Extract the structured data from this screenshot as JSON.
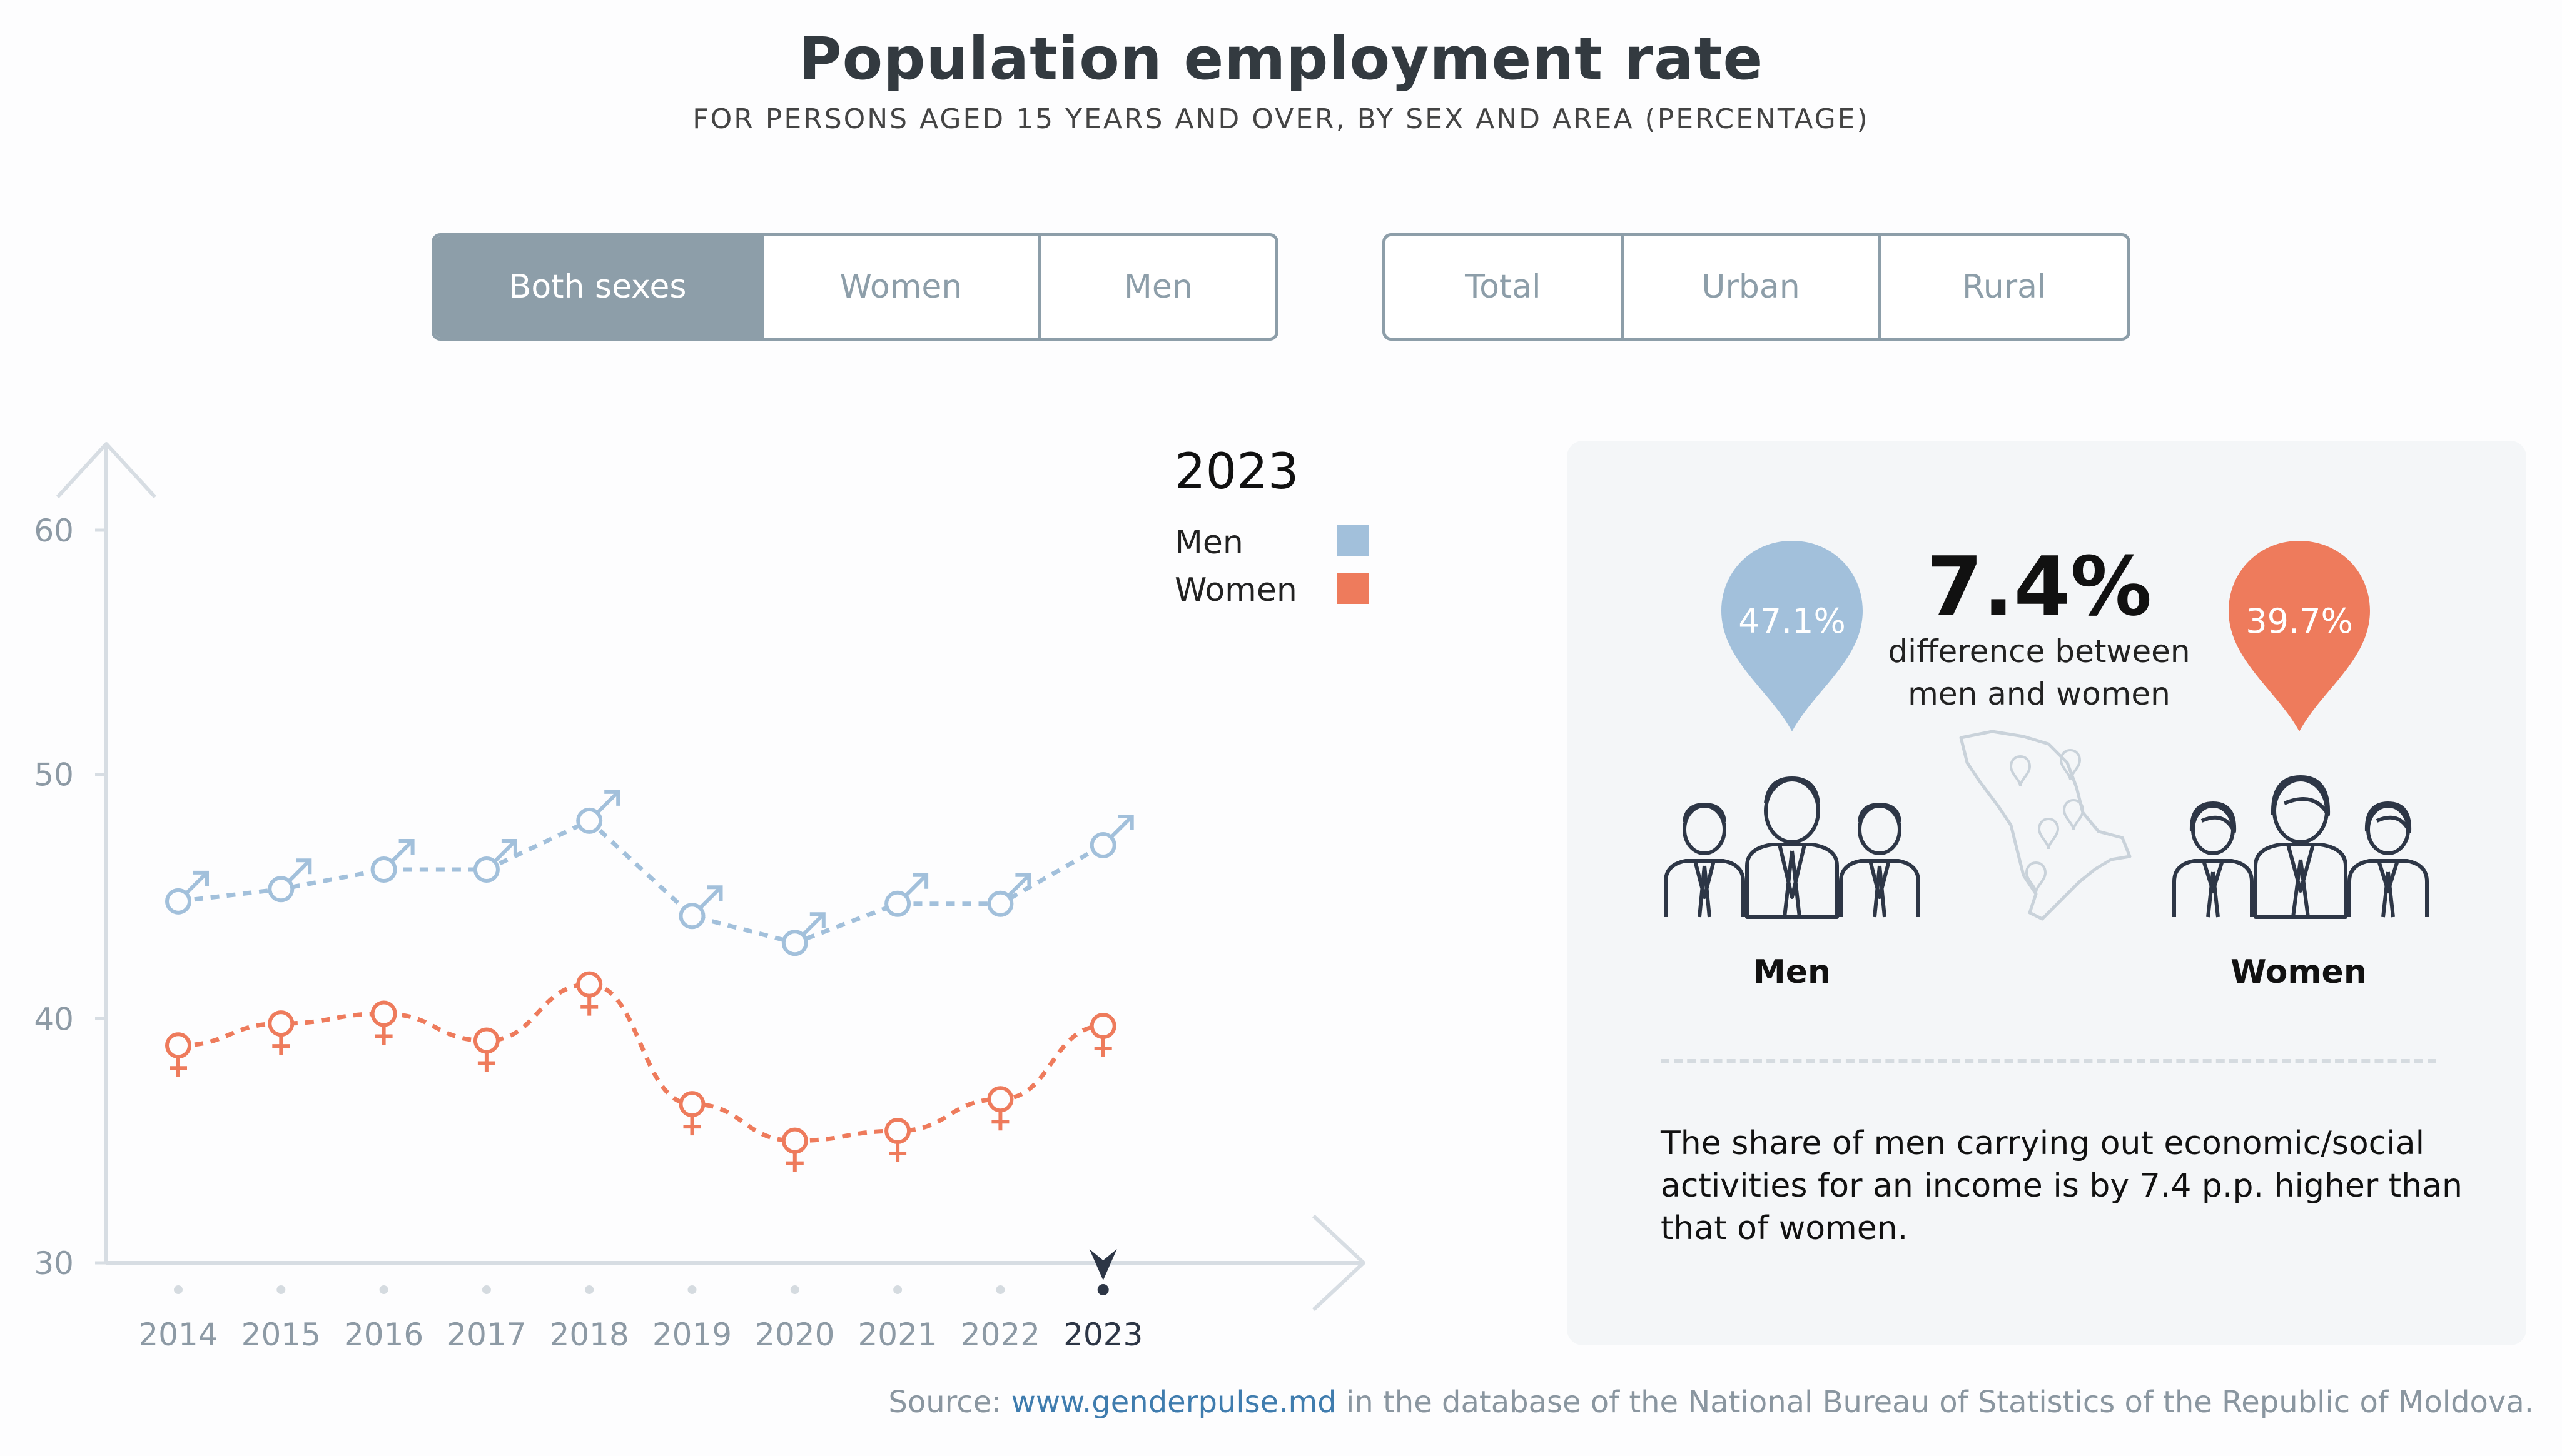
{
  "title": "Population employment rate",
  "subtitle": "FOR PERSONS AGED 15 YEARS AND OVER, BY SEX AND AREA (PERCENTAGE)",
  "sex_filter": {
    "selected": "Both sexes",
    "options": [
      "Both sexes",
      "Women",
      "Men"
    ]
  },
  "area_filter": {
    "selected": "",
    "options": [
      "Total",
      "Urban",
      "Rural"
    ]
  },
  "legend": {
    "year": "2023",
    "men": "Men",
    "women": "Women"
  },
  "colors": {
    "men": "#a2c0db",
    "women": "#ee7b5c",
    "axis": "#d7dde3",
    "tick_text": "#8d9aa5",
    "selected_text": "#2d3646",
    "panel_bg": "#f4f6f8"
  },
  "chart_data": {
    "type": "line",
    "x": [
      "2014",
      "2015",
      "2016",
      "2017",
      "2018",
      "2019",
      "2020",
      "2021",
      "2022",
      "2023"
    ],
    "series": [
      {
        "name": "Men",
        "values": [
          44.8,
          45.3,
          46.1,
          46.1,
          48.1,
          44.2,
          43.1,
          44.7,
          44.7,
          47.1
        ]
      },
      {
        "name": "Women",
        "values": [
          38.9,
          39.8,
          40.2,
          39.1,
          41.4,
          36.5,
          35.0,
          35.4,
          36.7,
          39.7
        ]
      }
    ],
    "yticks": [
      "60",
      "50",
      "40",
      "30"
    ],
    "ylim": [
      30,
      60
    ],
    "selected_year": "2023",
    "grid": false,
    "legend_position": "top-right"
  },
  "panel": {
    "men_value": "47.1%",
    "women_value": "39.7%",
    "difference_value": "7.4%",
    "difference_text": "difference between men and women",
    "men_label": "Men",
    "women_label": "Women",
    "note": "The share of men carrying out economic/social activities for an income is by 7.4 p.p. higher than that of women."
  },
  "source": {
    "prefix": "Source: ",
    "link": "www.genderpulse.md",
    "suffix": " in the database of the National Bureau of Statistics of the Republic of Moldova."
  },
  "icons": {
    "men_symbol": "male-symbol-icon",
    "women_symbol": "female-symbol-icon",
    "map": "moldova-map-icon",
    "selected_marker": "year-selector-arrow-icon"
  }
}
